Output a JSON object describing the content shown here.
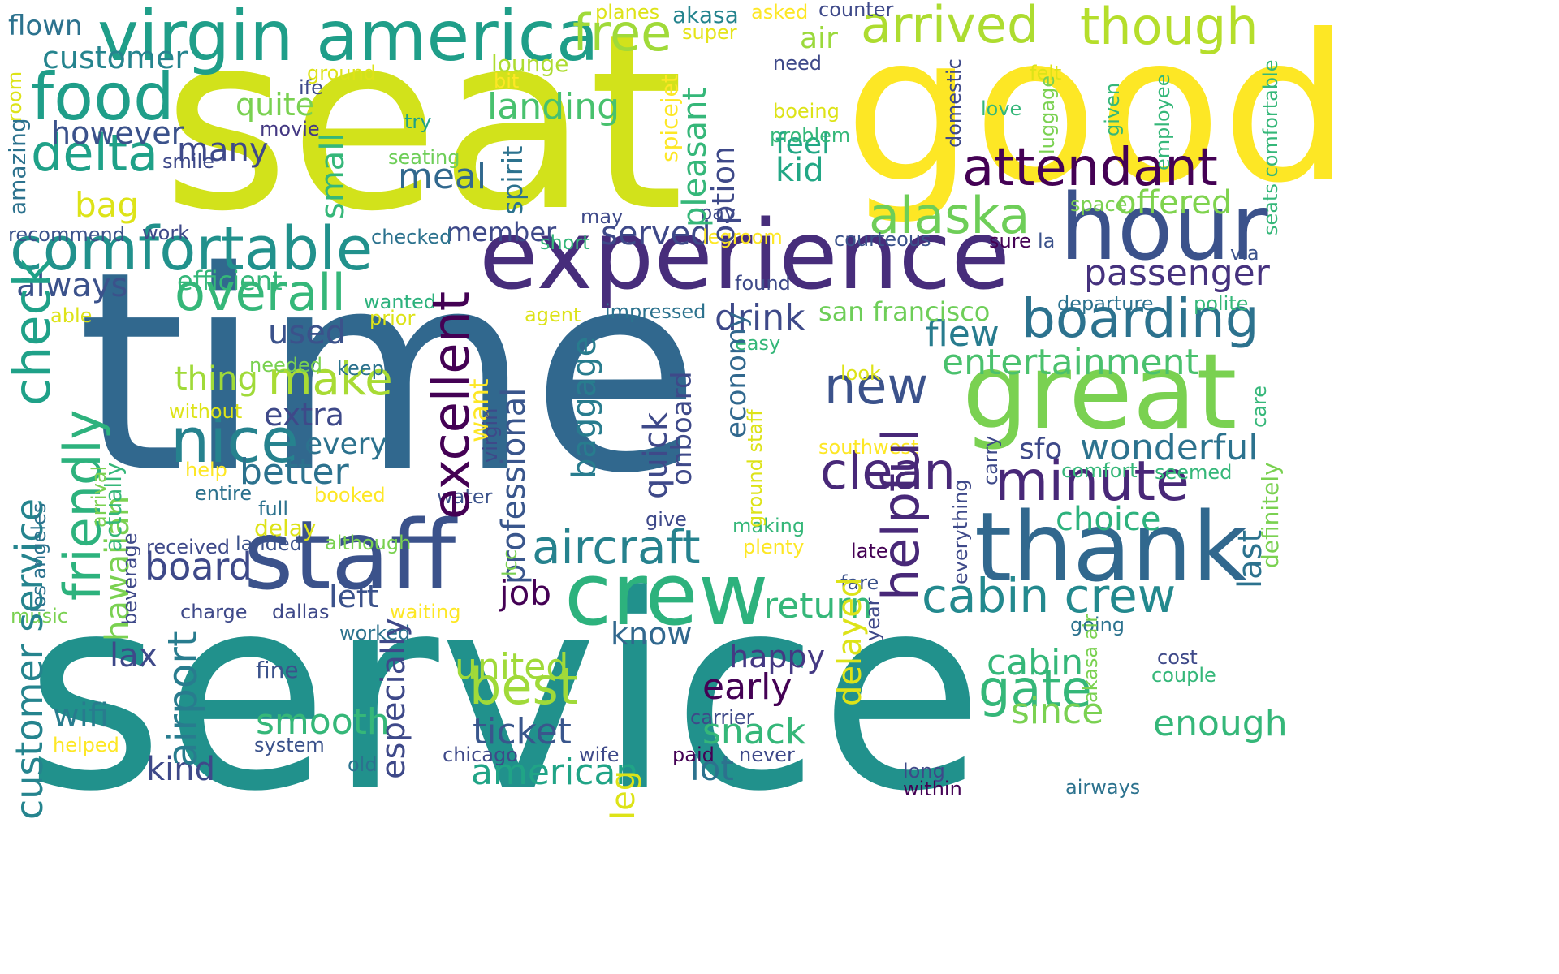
{
  "word_cloud": {
    "words": [
      {
        "text": "seat",
        "color": "#d2e21b",
        "rotated": false
      },
      {
        "text": "time",
        "color": "#31688e",
        "rotated": false
      },
      {
        "text": "service",
        "color": "#21918c",
        "rotated": false
      },
      {
        "text": "good",
        "color": "#fde725",
        "rotated": false
      },
      {
        "text": "experience",
        "color": "#472d7b",
        "rotated": false
      },
      {
        "text": "great",
        "color": "#7ad151",
        "rotated": false
      },
      {
        "text": "hour",
        "color": "#3b528b",
        "rotated": false
      },
      {
        "text": "crew",
        "color": "#2db27d",
        "rotated": false
      },
      {
        "text": "thank",
        "color": "#31688e",
        "rotated": false
      },
      {
        "text": "staff",
        "color": "#3b528b",
        "rotated": false
      },
      {
        "text": "virgin america",
        "color": "#1f9e89",
        "rotated": false
      },
      {
        "text": "comfortable",
        "color": "#21918c",
        "rotated": false
      },
      {
        "text": "attendant",
        "color": "#440154",
        "rotated": false
      },
      {
        "text": "nice",
        "color": "#26828e",
        "rotated": false
      },
      {
        "text": "food",
        "color": "#1f9e89",
        "rotated": false
      },
      {
        "text": "alaska",
        "color": "#6ece58",
        "rotated": false
      },
      {
        "text": "boarding",
        "color": "#2c728e",
        "rotated": false
      },
      {
        "text": "minute",
        "color": "#482878",
        "rotated": false
      },
      {
        "text": "arrived",
        "color": "#addc30",
        "rotated": false
      },
      {
        "text": "though",
        "color": "#b5de2b",
        "rotated": false
      },
      {
        "text": "overall",
        "color": "#35b779",
        "rotated": false
      },
      {
        "text": "delta",
        "color": "#1fa188",
        "rotated": false
      },
      {
        "text": "cabin crew",
        "color": "#23898e",
        "rotated": false
      },
      {
        "text": "new",
        "color": "#3b528b",
        "rotated": false
      },
      {
        "text": "clean",
        "color": "#482878",
        "rotated": false
      },
      {
        "text": "aircraft",
        "color": "#26828e",
        "rotated": false
      },
      {
        "text": "free",
        "color": "#a0da39",
        "rotated": false
      },
      {
        "text": "make",
        "color": "#a8db34",
        "rotated": false
      },
      {
        "text": "entertainment",
        "color": "#4ac16d",
        "rotated": false
      },
      {
        "text": "passenger",
        "color": "#46327e",
        "rotated": false
      },
      {
        "text": "gate",
        "color": "#35b779",
        "rotated": false
      },
      {
        "text": "best",
        "color": "#a0da39",
        "rotated": false
      },
      {
        "text": "wonderful",
        "color": "#2c728e",
        "rotated": false
      },
      {
        "text": "american",
        "color": "#20a486",
        "rotated": false
      },
      {
        "text": "board",
        "color": "#3e4989",
        "rotated": false
      },
      {
        "text": "customer",
        "color": "#25848e",
        "rotated": false
      },
      {
        "text": "however",
        "color": "#3b528b",
        "rotated": false
      },
      {
        "text": "quite",
        "color": "#7ad151",
        "rotated": false
      },
      {
        "text": "many",
        "color": "#3e4989",
        "rotated": false
      },
      {
        "text": "meal",
        "color": "#31688e",
        "rotated": false
      },
      {
        "text": "landing",
        "color": "#48c16e",
        "rotated": false
      },
      {
        "text": "flew",
        "color": "#287c8e",
        "rotated": false
      },
      {
        "text": "drink",
        "color": "#3e4989",
        "rotated": false
      },
      {
        "text": "offered",
        "color": "#7fd34e",
        "rotated": false
      },
      {
        "text": "served",
        "color": "#3e4989",
        "rotated": false
      },
      {
        "text": "always",
        "color": "#3b528b",
        "rotated": false
      },
      {
        "text": "better",
        "color": "#2c728e",
        "rotated": false
      },
      {
        "text": "extra",
        "color": "#3e4989",
        "rotated": false
      },
      {
        "text": "thing",
        "color": "#a0da39",
        "rotated": false
      },
      {
        "text": "used",
        "color": "#3b528b",
        "rotated": false
      },
      {
        "text": "san francisco",
        "color": "#6ece58",
        "rotated": false
      },
      {
        "text": "return",
        "color": "#35b779",
        "rotated": false
      },
      {
        "text": "cabin",
        "color": "#35b779",
        "rotated": false
      },
      {
        "text": "since",
        "color": "#7ad151",
        "rotated": false
      },
      {
        "text": "enough",
        "color": "#35b779",
        "rotated": false
      },
      {
        "text": "snack",
        "color": "#35b779",
        "rotated": false
      },
      {
        "text": "smooth",
        "color": "#35b779",
        "rotated": false
      },
      {
        "text": "ticket",
        "color": "#39568c",
        "rotated": false
      },
      {
        "text": "early",
        "color": "#440154",
        "rotated": false
      },
      {
        "text": "happy",
        "color": "#443983",
        "rotated": false
      },
      {
        "text": "united",
        "color": "#a0da39",
        "rotated": false
      },
      {
        "text": "choice",
        "color": "#2db27d",
        "rotated": false
      },
      {
        "text": "job",
        "color": "#440154",
        "rotated": false
      },
      {
        "text": "know",
        "color": "#31688e",
        "rotated": false
      },
      {
        "text": "left",
        "color": "#3b528b",
        "rotated": false
      },
      {
        "text": "kid",
        "color": "#22a785",
        "rotated": false
      },
      {
        "text": "feel",
        "color": "#22a785",
        "rotated": false
      },
      {
        "text": "sfo",
        "color": "#3e4989",
        "rotated": false
      },
      {
        "text": "every",
        "color": "#2c728e",
        "rotated": false
      },
      {
        "text": "lax",
        "color": "#3e4989",
        "rotated": false
      },
      {
        "text": "wifi",
        "color": "#287c8e",
        "rotated": false
      },
      {
        "text": "kind",
        "color": "#3e4989",
        "rotated": false
      },
      {
        "text": "lot",
        "color": "#2c728e",
        "rotated": false
      },
      {
        "text": "bag",
        "color": "#dde318",
        "rotated": false
      },
      {
        "text": "efficient",
        "color": "#35b779",
        "rotated": false
      },
      {
        "text": "member",
        "color": "#3e4989",
        "rotated": false
      },
      {
        "text": "lounge",
        "color": "#addc30",
        "rotated": false
      },
      {
        "text": "flown",
        "color": "#2c728e",
        "rotated": false
      },
      {
        "text": "air",
        "color": "#9bd93c",
        "rotated": false
      },
      {
        "text": "akasa",
        "color": "#25848e",
        "rotated": false
      },
      {
        "text": "planes",
        "color": "#dde318",
        "rotated": false
      },
      {
        "text": "asked",
        "color": "#fde725",
        "rotated": false
      },
      {
        "text": "counter",
        "color": "#3e4989",
        "rotated": false
      },
      {
        "text": "super",
        "color": "#e5e419",
        "rotated": false
      },
      {
        "text": "ground",
        "color": "#dde318",
        "rotated": false
      },
      {
        "text": "need",
        "color": "#3e4989",
        "rotated": false
      },
      {
        "text": "felt",
        "color": "#dde318",
        "rotated": false
      },
      {
        "text": "bit",
        "color": "#fde725",
        "rotated": false
      },
      {
        "text": "try",
        "color": "#1fa188",
        "rotated": false
      },
      {
        "text": "ife",
        "color": "#3e4989",
        "rotated": false
      },
      {
        "text": "movie",
        "color": "#443983",
        "rotated": false
      },
      {
        "text": "smile",
        "color": "#3e4989",
        "rotated": false
      },
      {
        "text": "seating",
        "color": "#6ece58",
        "rotated": false
      },
      {
        "text": "may",
        "color": "#3e4989",
        "rotated": false
      },
      {
        "text": "problem",
        "color": "#35b779",
        "rotated": false
      },
      {
        "text": "boeing",
        "color": "#dde318",
        "rotated": false
      },
      {
        "text": "love",
        "color": "#35b779",
        "rotated": false
      },
      {
        "text": "recommend",
        "color": "#3b528b",
        "rotated": false
      },
      {
        "text": "work",
        "color": "#3e4989",
        "rotated": false
      },
      {
        "text": "checked",
        "color": "#2c728e",
        "rotated": false
      },
      {
        "text": "short",
        "color": "#35b779",
        "rotated": false
      },
      {
        "text": "legroom",
        "color": "#fde725",
        "rotated": false
      },
      {
        "text": "courteous",
        "color": "#3b528b",
        "rotated": false
      },
      {
        "text": "sure",
        "color": "#440154",
        "rotated": false
      },
      {
        "text": "la",
        "color": "#3b528b",
        "rotated": false
      },
      {
        "text": "pay",
        "color": "#3e4989",
        "rotated": false
      },
      {
        "text": "space",
        "color": "#7ad151",
        "rotated": false
      },
      {
        "text": "via",
        "color": "#3b528b",
        "rotated": false
      },
      {
        "text": "found",
        "color": "#3e4989",
        "rotated": false
      },
      {
        "text": "impressed",
        "color": "#2c728e",
        "rotated": false
      },
      {
        "text": "agent",
        "color": "#dde318",
        "rotated": false
      },
      {
        "text": "wanted",
        "color": "#2db27d",
        "rotated": false
      },
      {
        "text": "prior",
        "color": "#dde318",
        "rotated": false
      },
      {
        "text": "able",
        "color": "#dde318",
        "rotated": false
      },
      {
        "text": "departure",
        "color": "#2c728e",
        "rotated": false
      },
      {
        "text": "polite",
        "color": "#35b779",
        "rotated": false
      },
      {
        "text": "easy",
        "color": "#35b779",
        "rotated": false
      },
      {
        "text": "needed",
        "color": "#7ad151",
        "rotated": false
      },
      {
        "text": "keep",
        "color": "#2c728e",
        "rotated": false
      },
      {
        "text": "look",
        "color": "#dde318",
        "rotated": false
      },
      {
        "text": "without",
        "color": "#dde318",
        "rotated": false
      },
      {
        "text": "southwest",
        "color": "#fde725",
        "rotated": false
      },
      {
        "text": "help",
        "color": "#fde725",
        "rotated": false
      },
      {
        "text": "entire",
        "color": "#2c728e",
        "rotated": false
      },
      {
        "text": "booked",
        "color": "#fde725",
        "rotated": false
      },
      {
        "text": "full",
        "color": "#2c728e",
        "rotated": false
      },
      {
        "text": "delay",
        "color": "#dde318",
        "rotated": false
      },
      {
        "text": "water",
        "color": "#3b528b",
        "rotated": false
      },
      {
        "text": "give",
        "color": "#3e4989",
        "rotated": false
      },
      {
        "text": "making",
        "color": "#35b779",
        "rotated": false
      },
      {
        "text": "comfort",
        "color": "#35b779",
        "rotated": false
      },
      {
        "text": "seemed",
        "color": "#35b779",
        "rotated": false
      },
      {
        "text": "received",
        "color": "#3e4989",
        "rotated": false
      },
      {
        "text": "landed",
        "color": "#3b528b",
        "rotated": false
      },
      {
        "text": "although",
        "color": "#7ad151",
        "rotated": false
      },
      {
        "text": "plenty",
        "color": "#fde725",
        "rotated": false
      },
      {
        "text": "late",
        "color": "#440154",
        "rotated": false
      },
      {
        "text": "fare",
        "color": "#3b528b",
        "rotated": false
      },
      {
        "text": "music",
        "color": "#7ad151",
        "rotated": false
      },
      {
        "text": "charge",
        "color": "#3e4989",
        "rotated": false
      },
      {
        "text": "dallas",
        "color": "#3e4989",
        "rotated": false
      },
      {
        "text": "waiting",
        "color": "#fde725",
        "rotated": false
      },
      {
        "text": "worked",
        "color": "#2c728e",
        "rotated": false
      },
      {
        "text": "going",
        "color": "#2c728e",
        "rotated": false
      },
      {
        "text": "cost",
        "color": "#3e4989",
        "rotated": false
      },
      {
        "text": "couple",
        "color": "#35b779",
        "rotated": false
      },
      {
        "text": "fine",
        "color": "#3b528b",
        "rotated": false
      },
      {
        "text": "carrier",
        "color": "#3e4989",
        "rotated": false
      },
      {
        "text": "helped",
        "color": "#fde725",
        "rotated": false
      },
      {
        "text": "system",
        "color": "#3b528b",
        "rotated": false
      },
      {
        "text": "old",
        "color": "#2c728e",
        "rotated": false
      },
      {
        "text": "chicago",
        "color": "#3e4989",
        "rotated": false
      },
      {
        "text": "wife",
        "color": "#3e4989",
        "rotated": false
      },
      {
        "text": "paid",
        "color": "#440154",
        "rotated": false
      },
      {
        "text": "never",
        "color": "#3e4989",
        "rotated": false
      },
      {
        "text": "long",
        "color": "#3e4989",
        "rotated": false
      },
      {
        "text": "within",
        "color": "#440154",
        "rotated": false
      },
      {
        "text": "airways",
        "color": "#2c728e",
        "rotated": false
      },
      {
        "text": "customer service",
        "color": "#25848e",
        "rotated": true
      },
      {
        "text": "check",
        "color": "#1fa188",
        "rotated": true
      },
      {
        "text": "friendly",
        "color": "#2db27d",
        "rotated": true
      },
      {
        "text": "hawaiian",
        "color": "#7ad151",
        "rotated": true
      },
      {
        "text": "actually",
        "color": "#35b779",
        "rotated": true
      },
      {
        "text": "arrival",
        "color": "#7ad151",
        "rotated": true
      },
      {
        "text": "los angeles",
        "color": "#2c728e",
        "rotated": true
      },
      {
        "text": "beverage",
        "color": "#3e4989",
        "rotated": true
      },
      {
        "text": "amazing",
        "color": "#2c728e",
        "rotated": true
      },
      {
        "text": "room",
        "color": "#dde318",
        "rotated": true
      },
      {
        "text": "airport",
        "color": "#287c8e",
        "rotated": true
      },
      {
        "text": "small",
        "color": "#35b779",
        "rotated": true
      },
      {
        "text": "excellent",
        "color": "#440154",
        "rotated": true
      },
      {
        "text": "spirit",
        "color": "#2c728e",
        "rotated": true
      },
      {
        "text": "professional",
        "color": "#39568c",
        "rotated": true
      },
      {
        "text": "want",
        "color": "#fde725",
        "rotated": true
      },
      {
        "text": "virgin",
        "color": "#3e4989",
        "rotated": true
      },
      {
        "text": "lcc",
        "color": "#7ad151",
        "rotated": true
      },
      {
        "text": "especially",
        "color": "#3e4989",
        "rotated": true
      },
      {
        "text": "baggage",
        "color": "#287c8e",
        "rotated": true
      },
      {
        "text": "quick",
        "color": "#3e4989",
        "rotated": true
      },
      {
        "text": "onboard",
        "color": "#3e4989",
        "rotated": true
      },
      {
        "text": "pleasant",
        "color": "#35b779",
        "rotated": true
      },
      {
        "text": "spicejet",
        "color": "#fde725",
        "rotated": true
      },
      {
        "text": "option",
        "color": "#3e4989",
        "rotated": true
      },
      {
        "text": "economy",
        "color": "#31688e",
        "rotated": true
      },
      {
        "text": "ground staff",
        "color": "#dde318",
        "rotated": true
      },
      {
        "text": "helpful",
        "color": "#482878",
        "rotated": true
      },
      {
        "text": "delayed",
        "color": "#dde318",
        "rotated": true
      },
      {
        "text": "year",
        "color": "#3e4989",
        "rotated": true
      },
      {
        "text": "everything",
        "color": "#3e4989",
        "rotated": true
      },
      {
        "text": "carry",
        "color": "#3e4989",
        "rotated": true
      },
      {
        "text": "akasa air",
        "color": "#7ad151",
        "rotated": true
      },
      {
        "text": "last",
        "color": "#2c728e",
        "rotated": true
      },
      {
        "text": "definitely",
        "color": "#7ad151",
        "rotated": true
      },
      {
        "text": "care",
        "color": "#35b779",
        "rotated": true
      },
      {
        "text": "domestic",
        "color": "#3e4989",
        "rotated": true
      },
      {
        "text": "luggage",
        "color": "#7ad151",
        "rotated": true
      },
      {
        "text": "given",
        "color": "#35b779",
        "rotated": true
      },
      {
        "text": "employee",
        "color": "#35b779",
        "rotated": true
      },
      {
        "text": "seats comfortable",
        "color": "#35b779",
        "rotated": true
      },
      {
        "text": "leg",
        "color": "#dde318",
        "rotated": true
      }
    ]
  }
}
